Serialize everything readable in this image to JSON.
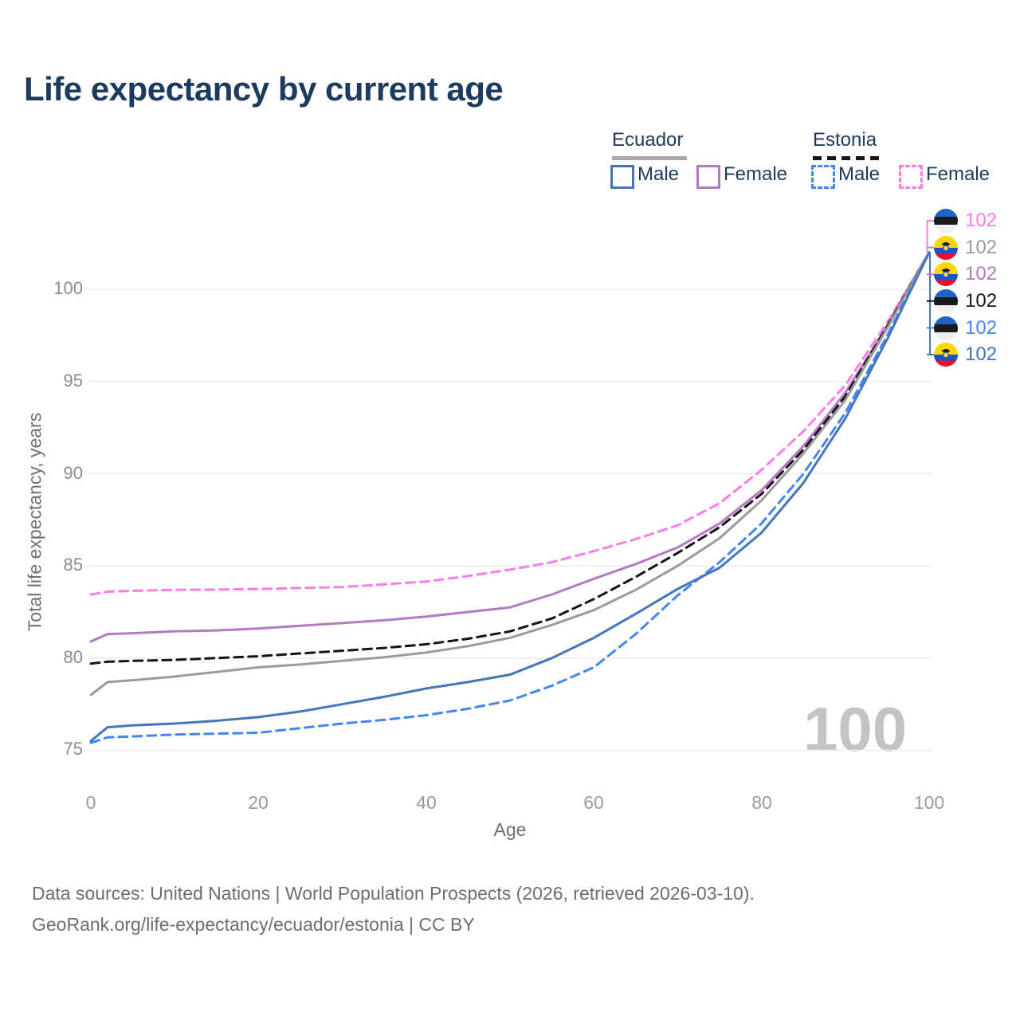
{
  "title": "Life expectancy by current age",
  "watermark": "100",
  "legend": {
    "groups": [
      {
        "label": "Ecuador",
        "style": "solid",
        "items": [
          {
            "label": "Male",
            "series": "Ecuador Male"
          },
          {
            "label": "Female",
            "series": "Ecuador Female"
          }
        ]
      },
      {
        "label": "Estonia",
        "style": "dashed",
        "items": [
          {
            "label": "Male",
            "series": "Estonia Male"
          },
          {
            "label": "Female",
            "series": "Estonia Female"
          }
        ]
      }
    ]
  },
  "axes": {
    "x_title": "Age",
    "y_title": "Total life expectancy, years"
  },
  "end_labels": [
    {
      "flag": "estonia",
      "series": "Estonia Female",
      "value": "102",
      "color": "#fc7ce8"
    },
    {
      "flag": "ecuador",
      "series": "Ecuador (both sexes)",
      "value": "102",
      "color": "#9b9b9b"
    },
    {
      "flag": "ecuador",
      "series": "Ecuador Female",
      "value": "102",
      "color": "#b579c1"
    },
    {
      "flag": "estonia",
      "series": "Estonia (both sexes)",
      "value": "102",
      "color": "#1a1a1a"
    },
    {
      "flag": "estonia",
      "series": "Estonia Male",
      "value": "102",
      "color": "#4287f5"
    },
    {
      "flag": "ecuador",
      "series": "Ecuador Male",
      "value": "102",
      "color": "#4576bb"
    }
  ],
  "footer": {
    "line1": "Data sources: United Nations | World Population Prospects (2026, retrieved 2026-03-10).",
    "line2": "GeoRank.org/life-expectancy/ecuador/estonia | CC BY"
  },
  "chart_data": {
    "type": "line",
    "title": "Life expectancy by current age",
    "xlabel": "Age",
    "ylabel": "Total life expectancy, years",
    "xlim": [
      0,
      100
    ],
    "ylim": [
      74,
      103
    ],
    "xticks": [
      0,
      20,
      40,
      60,
      80,
      100
    ],
    "yticks": [
      75,
      80,
      85,
      90,
      95,
      100
    ],
    "grid": "horizontal",
    "legend_position": "top-right",
    "x": [
      0,
      2,
      5,
      10,
      15,
      20,
      25,
      30,
      35,
      40,
      45,
      50,
      55,
      60,
      65,
      70,
      75,
      80,
      85,
      90,
      95,
      100
    ],
    "series": [
      {
        "name": "Estonia Female",
        "country": "Estonia",
        "sex": "Female",
        "color": "#fc7ce8",
        "dash": "dashed",
        "end_value": 102,
        "values": [
          83.45,
          83.6,
          83.65,
          83.7,
          83.72,
          83.75,
          83.8,
          83.85,
          84.0,
          84.15,
          84.45,
          84.8,
          85.2,
          85.8,
          86.45,
          87.2,
          88.4,
          90.2,
          92.3,
          94.8,
          98.2,
          102
        ]
      },
      {
        "name": "Ecuador Female",
        "country": "Ecuador",
        "sex": "Female",
        "color": "#b579c1",
        "dash": "solid",
        "end_value": 102,
        "values": [
          80.9,
          81.3,
          81.35,
          81.45,
          81.5,
          81.6,
          81.75,
          81.9,
          82.05,
          82.25,
          82.5,
          82.75,
          83.45,
          84.3,
          85.1,
          86.0,
          87.3,
          89.1,
          91.5,
          94.4,
          98.0,
          102
        ]
      },
      {
        "name": "Estonia (both sexes)",
        "country": "Estonia",
        "sex": "Both",
        "color": "#141414",
        "dash": "dashed",
        "end_value": 102,
        "values": [
          79.7,
          79.8,
          79.85,
          79.9,
          80.0,
          80.1,
          80.25,
          80.4,
          80.55,
          80.75,
          81.05,
          81.45,
          82.15,
          83.2,
          84.4,
          85.7,
          87.1,
          88.9,
          91.3,
          94.2,
          98.0,
          102
        ]
      },
      {
        "name": "Ecuador (both sexes)",
        "country": "Ecuador",
        "sex": "Both",
        "color": "#9b9b9b",
        "dash": "solid",
        "end_value": 102,
        "values": [
          78.0,
          78.7,
          78.8,
          79.0,
          79.25,
          79.5,
          79.65,
          79.85,
          80.05,
          80.3,
          80.65,
          81.1,
          81.8,
          82.6,
          83.7,
          85.0,
          86.5,
          88.55,
          91.1,
          94.0,
          97.9,
          102
        ]
      },
      {
        "name": "Estonia Male",
        "country": "Estonia",
        "sex": "Male",
        "color": "#4287f5",
        "dash": "dashed",
        "end_value": 102,
        "values": [
          75.4,
          75.7,
          75.75,
          75.85,
          75.9,
          75.95,
          76.2,
          76.45,
          76.65,
          76.9,
          77.25,
          77.7,
          78.5,
          79.5,
          81.3,
          83.4,
          85.2,
          87.3,
          90.0,
          93.3,
          97.5,
          102
        ]
      },
      {
        "name": "Ecuador Male",
        "country": "Ecuador",
        "sex": "Male",
        "color": "#4576bb",
        "dash": "solid",
        "end_value": 102,
        "values": [
          75.5,
          76.25,
          76.35,
          76.45,
          76.6,
          76.8,
          77.1,
          77.5,
          77.9,
          78.35,
          78.7,
          79.1,
          80.0,
          81.1,
          82.4,
          83.75,
          84.9,
          86.8,
          89.5,
          93.0,
          97.3,
          102
        ]
      }
    ]
  }
}
